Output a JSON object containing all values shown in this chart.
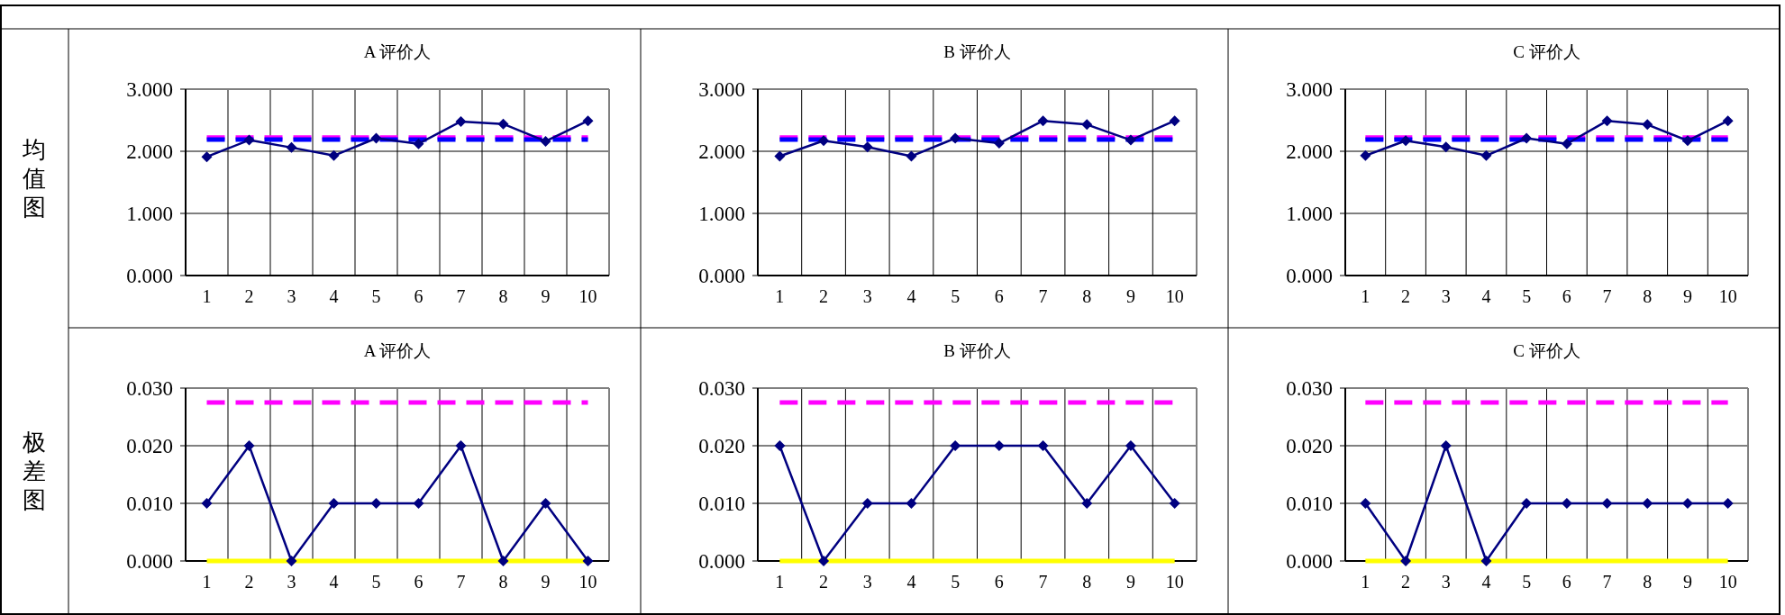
{
  "chart_data": [
    {
      "type": "line",
      "title": "A 评价人",
      "ylabel": "均值图",
      "categories": [
        "1",
        "2",
        "3",
        "4",
        "5",
        "6",
        "7",
        "8",
        "9",
        "10"
      ],
      "series": [
        {
          "color": "#000080",
          "values": [
            1.91,
            2.18,
            2.06,
            1.93,
            2.21,
            2.12,
            2.48,
            2.44,
            2.16,
            2.49
          ]
        }
      ],
      "ylim": [
        0,
        3
      ],
      "yticks": [
        {
          "value": 0,
          "label": "0.000"
        },
        {
          "value": 1,
          "label": "1.000"
        },
        {
          "value": 2,
          "label": "2.000"
        },
        {
          "value": 3,
          "label": "3.000"
        }
      ],
      "ref_lines": [
        {
          "axis": "y",
          "value": 2.22,
          "color": "#ff00ff",
          "line_style": "dashed"
        },
        {
          "axis": "y",
          "value": 2.19,
          "color": "#0000ff",
          "line_style": "dashed"
        }
      ],
      "grid": true,
      "marker": "diamond",
      "line_style": "solid"
    },
    {
      "type": "line",
      "title": "B 评价人",
      "categories": [
        "1",
        "2",
        "3",
        "4",
        "5",
        "6",
        "7",
        "8",
        "9",
        "10"
      ],
      "series": [
        {
          "color": "#000080",
          "values": [
            1.92,
            2.17,
            2.07,
            1.92,
            2.21,
            2.13,
            2.49,
            2.43,
            2.18,
            2.49
          ]
        }
      ],
      "ylim": [
        0,
        3
      ],
      "yticks": [
        {
          "value": 0,
          "label": "0.000"
        },
        {
          "value": 1,
          "label": "1.000"
        },
        {
          "value": 2,
          "label": "2.000"
        },
        {
          "value": 3,
          "label": "3.000"
        }
      ],
      "ref_lines": [
        {
          "axis": "y",
          "value": 2.22,
          "color": "#ff00ff",
          "line_style": "dashed"
        },
        {
          "axis": "y",
          "value": 2.19,
          "color": "#0000ff",
          "line_style": "dashed"
        }
      ],
      "grid": true,
      "marker": "diamond",
      "line_style": "solid"
    },
    {
      "type": "line",
      "title": "C 评价人",
      "categories": [
        "1",
        "2",
        "3",
        "4",
        "5",
        "6",
        "7",
        "8",
        "9",
        "10"
      ],
      "series": [
        {
          "color": "#000080",
          "values": [
            1.93,
            2.17,
            2.07,
            1.93,
            2.21,
            2.12,
            2.49,
            2.43,
            2.17,
            2.49
          ]
        }
      ],
      "ylim": [
        0,
        3
      ],
      "yticks": [
        {
          "value": 0,
          "label": "0.000"
        },
        {
          "value": 1,
          "label": "1.000"
        },
        {
          "value": 2,
          "label": "2.000"
        },
        {
          "value": 3,
          "label": "3.000"
        }
      ],
      "ref_lines": [
        {
          "axis": "y",
          "value": 2.22,
          "color": "#ff00ff",
          "line_style": "dashed"
        },
        {
          "axis": "y",
          "value": 2.19,
          "color": "#0000ff",
          "line_style": "dashed"
        }
      ],
      "grid": true,
      "marker": "diamond",
      "line_style": "solid"
    },
    {
      "type": "line",
      "title": "A 评价人",
      "ylabel": "极差图",
      "categories": [
        "1",
        "2",
        "3",
        "4",
        "5",
        "6",
        "7",
        "8",
        "9",
        "10"
      ],
      "series": [
        {
          "color": "#000080",
          "values": [
            0.01,
            0.02,
            0,
            0.01,
            0.01,
            0.01,
            0.02,
            0,
            0.01,
            0
          ]
        }
      ],
      "ylim": [
        0,
        0.03
      ],
      "yticks": [
        {
          "value": 0,
          "label": "0.000"
        },
        {
          "value": 0.01,
          "label": "0.010"
        },
        {
          "value": 0.02,
          "label": "0.020"
        },
        {
          "value": 0.03,
          "label": "0.030"
        }
      ],
      "ref_lines": [
        {
          "axis": "y",
          "value": 0.0275,
          "color": "#ff00ff",
          "line_style": "dashed"
        },
        {
          "axis": "y",
          "value": 0,
          "color": "#ffff00",
          "line_style": "solid"
        }
      ],
      "grid": true,
      "marker": "diamond",
      "line_style": "solid"
    },
    {
      "type": "line",
      "title": "B 评价人",
      "categories": [
        "1",
        "2",
        "3",
        "4",
        "5",
        "6",
        "7",
        "8",
        "9",
        "10"
      ],
      "series": [
        {
          "color": "#000080",
          "values": [
            0.02,
            0,
            0.01,
            0.01,
            0.02,
            0.02,
            0.02,
            0.01,
            0.02,
            0.01
          ]
        }
      ],
      "ylim": [
        0,
        0.03
      ],
      "yticks": [
        {
          "value": 0,
          "label": "0.000"
        },
        {
          "value": 0.01,
          "label": "0.010"
        },
        {
          "value": 0.02,
          "label": "0.020"
        },
        {
          "value": 0.03,
          "label": "0.030"
        }
      ],
      "ref_lines": [
        {
          "axis": "y",
          "value": 0.0275,
          "color": "#ff00ff",
          "line_style": "dashed"
        },
        {
          "axis": "y",
          "value": 0,
          "color": "#ffff00",
          "line_style": "solid"
        }
      ],
      "grid": true,
      "marker": "diamond",
      "line_style": "solid"
    },
    {
      "type": "line",
      "title": "C 评价人",
      "categories": [
        "1",
        "2",
        "3",
        "4",
        "5",
        "6",
        "7",
        "8",
        "9",
        "10"
      ],
      "series": [
        {
          "color": "#000080",
          "values": [
            0.01,
            0,
            0.02,
            0,
            0.01,
            0.01,
            0.01,
            0.01,
            0.01,
            0.01
          ]
        }
      ],
      "ylim": [
        0,
        0.03
      ],
      "yticks": [
        {
          "value": 0,
          "label": "0.000"
        },
        {
          "value": 0.01,
          "label": "0.010"
        },
        {
          "value": 0.02,
          "label": "0.020"
        },
        {
          "value": 0.03,
          "label": "0.030"
        }
      ],
      "ref_lines": [
        {
          "axis": "y",
          "value": 0.0275,
          "color": "#ff00ff",
          "line_style": "dashed"
        },
        {
          "axis": "y",
          "value": 0,
          "color": "#ffff00",
          "line_style": "solid"
        }
      ],
      "grid": true,
      "marker": "diamond",
      "line_style": "solid"
    }
  ]
}
